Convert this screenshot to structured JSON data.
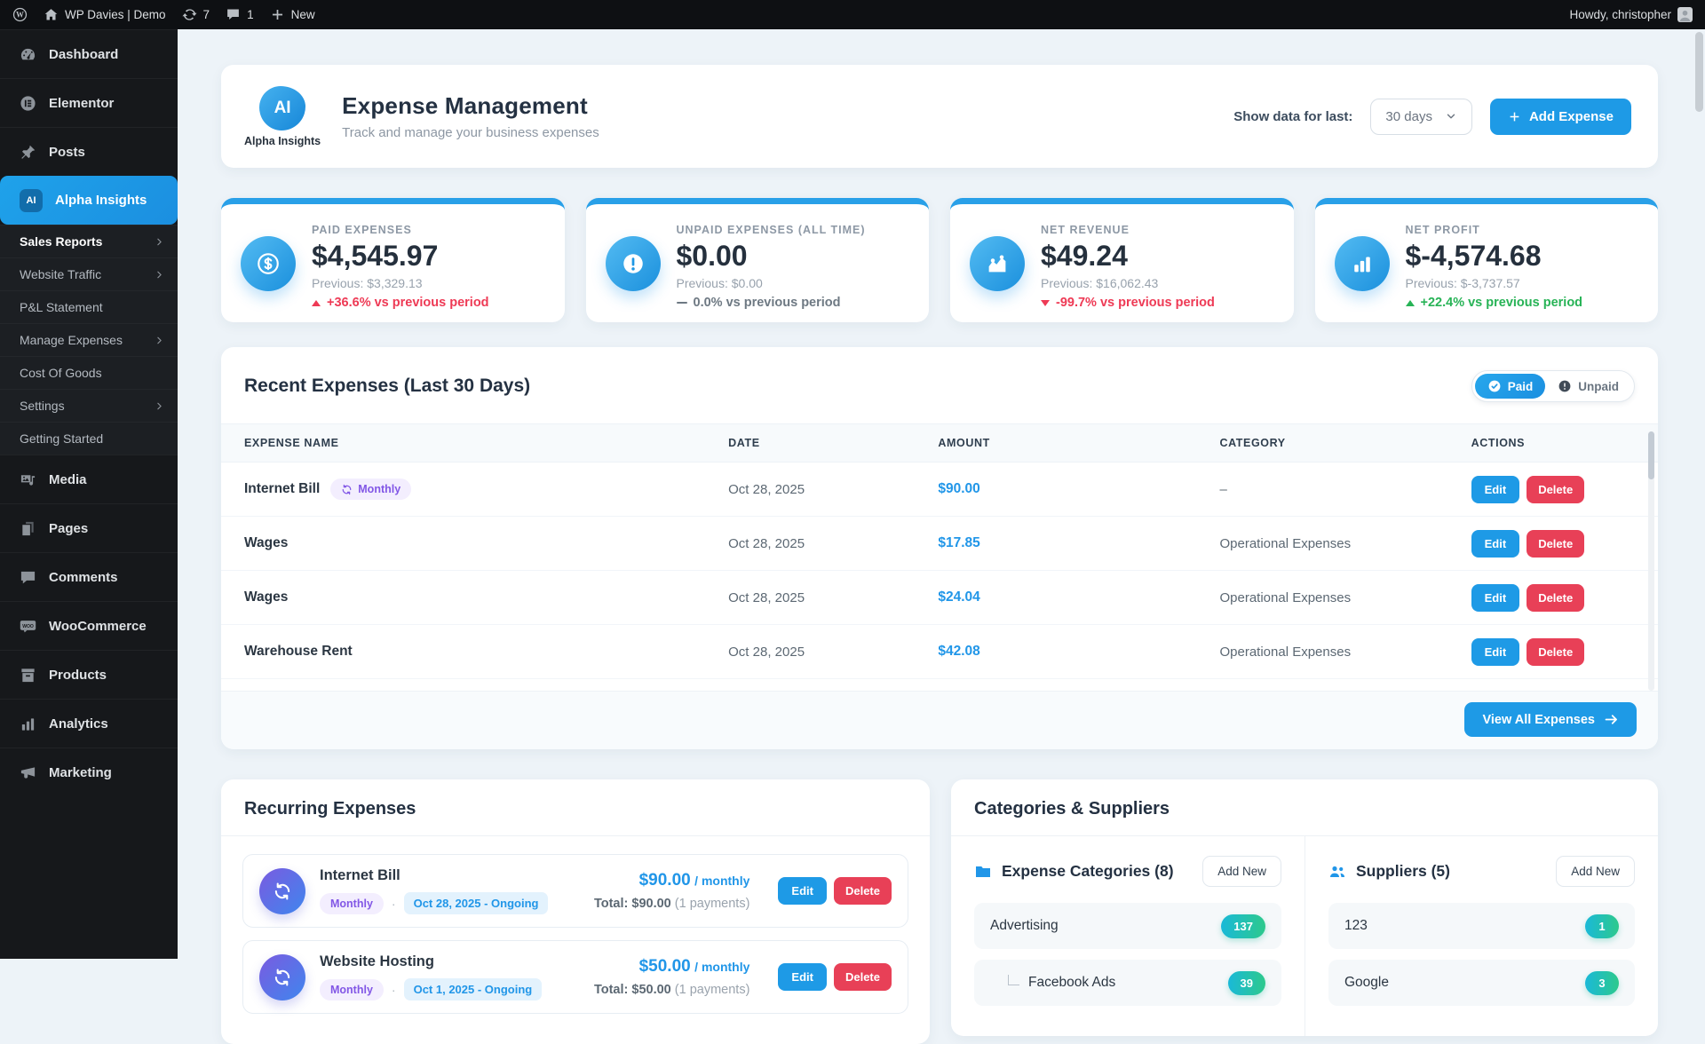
{
  "admin_bar": {
    "site_name": "WP Davies | Demo",
    "updates_count": "7",
    "comments_count": "1",
    "new_label": "New",
    "howdy": "Howdy, christopher"
  },
  "sidebar": {
    "ai_badge": "AI",
    "items_top": [
      {
        "label": "Dashboard",
        "icon": "dashboard-icon"
      },
      {
        "label": "Elementor",
        "icon": "elementor-icon"
      },
      {
        "label": "Posts",
        "icon": "pushpin-icon"
      },
      {
        "label": "Alpha Insights",
        "icon": "alpha-insights-badge"
      }
    ],
    "submenu": [
      {
        "label": "Sales Reports"
      },
      {
        "label": "Website Traffic"
      },
      {
        "label": "P&L Statement"
      },
      {
        "label": "Manage Expenses"
      },
      {
        "label": "Cost Of Goods"
      },
      {
        "label": "Settings"
      },
      {
        "label": "Getting Started"
      }
    ],
    "items_bottom": [
      {
        "label": "Media",
        "icon": "media-icon"
      },
      {
        "label": "Pages",
        "icon": "pages-icon"
      },
      {
        "label": "Comments",
        "icon": "comments-icon"
      },
      {
        "label": "WooCommerce",
        "icon": "woocommerce-icon"
      },
      {
        "label": "Products",
        "icon": "products-icon"
      },
      {
        "label": "Analytics",
        "icon": "analytics-icon"
      },
      {
        "label": "Marketing",
        "icon": "marketing-icon"
      }
    ]
  },
  "header": {
    "logo_text": "AI",
    "brand": "Alpha Insights",
    "title": "Expense Management",
    "subtitle": "Track and manage your business expenses",
    "filter_label": "Show data for last:",
    "filter_value": "30 days",
    "add_expense_label": "Add Expense"
  },
  "stats": [
    {
      "label": "PAID EXPENSES",
      "value": "$4,545.97",
      "previous": "Previous: $3,329.13",
      "delta": "+36.6% vs previous period",
      "direction": "up",
      "delta_color": "#ee3a55",
      "icon": "dollar-circle-icon"
    },
    {
      "label": "UNPAID EXPENSES (ALL TIME)",
      "value": "$0.00",
      "previous": "Previous: $0.00",
      "delta": "0.0% vs previous period",
      "direction": "flat",
      "delta_color": "#6e7983",
      "icon": "alert-circle-icon"
    },
    {
      "label": "NET REVENUE",
      "value": "$49.24",
      "previous": "Previous: $16,062.43",
      "delta": "-99.7% vs previous period",
      "direction": "down",
      "delta_color": "#ee3a55",
      "icon": "chart-up-icon"
    },
    {
      "label": "NET PROFIT",
      "value": "$-4,574.68",
      "previous": "Previous: $-3,737.57",
      "delta": "+22.4% vs previous period",
      "direction": "up",
      "delta_color": "#27b356",
      "icon": "bar-chart-icon"
    }
  ],
  "expenses_table": {
    "title": "Recent Expenses (Last 30 Days)",
    "toggle": {
      "paid": "Paid",
      "unpaid": "Unpaid"
    },
    "columns": [
      "EXPENSE NAME",
      "DATE",
      "AMOUNT",
      "CATEGORY",
      "ACTIONS"
    ],
    "rows": [
      {
        "name": "Internet Bill",
        "badge": "Monthly",
        "date": "Oct 28, 2025",
        "amount": "$90.00",
        "category": "–"
      },
      {
        "name": "Wages",
        "date": "Oct 28, 2025",
        "amount": "$17.85",
        "category": "Operational Expenses"
      },
      {
        "name": "Wages",
        "date": "Oct 28, 2025",
        "amount": "$24.04",
        "category": "Operational Expenses"
      },
      {
        "name": "Warehouse Rent",
        "date": "Oct 28, 2025",
        "amount": "$42.08",
        "category": "Operational Expenses"
      }
    ],
    "edit_label": "Edit",
    "delete_label": "Delete",
    "view_all_label": "View All Expenses"
  },
  "recurring": {
    "title": "Recurring Expenses",
    "items": [
      {
        "name": "Internet Bill",
        "badge": "Monthly",
        "separator": "·",
        "period": "Oct 28, 2025 - Ongoing",
        "amount": "$90.00",
        "freq": "/ monthly",
        "total": "Total: $90.00",
        "total_note": "(1 payments)"
      },
      {
        "name": "Website Hosting",
        "badge": "Monthly",
        "separator": "·",
        "period": "Oct 1, 2025 - Ongoing",
        "amount": "$50.00",
        "freq": "/ monthly",
        "total": "Total: $50.00",
        "total_note": "(1 payments)"
      }
    ]
  },
  "categories_suppliers": {
    "title": "Categories & Suppliers",
    "categories": {
      "heading": "Expense Categories (8)",
      "add_new_label": "Add New",
      "items": [
        {
          "name": "Advertising",
          "count": "137"
        },
        {
          "name": "Facebook Ads",
          "count": "39",
          "child": true
        }
      ]
    },
    "suppliers": {
      "heading": "Suppliers (5)",
      "add_new_label": "Add New",
      "items": [
        {
          "name": "123",
          "count": "1"
        },
        {
          "name": "Google",
          "count": "3"
        }
      ]
    }
  },
  "colors": {
    "accent_blue": "#1e9ae6",
    "delta_red": "#ee3a55",
    "delta_green": "#27b356",
    "badge_purple": "#8257e6",
    "count_teal_from": "#1ab9d8",
    "count_teal_to": "#2dc98c"
  }
}
